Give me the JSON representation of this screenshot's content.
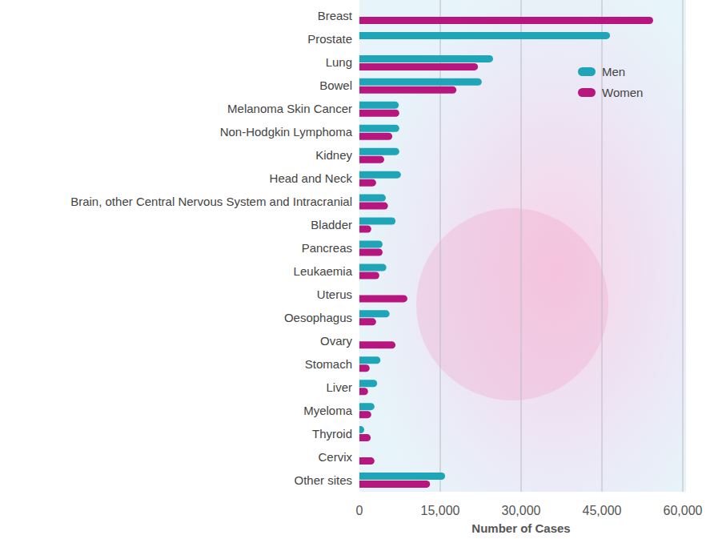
{
  "chart_data": {
    "type": "bar",
    "orientation": "horizontal",
    "x_label": "Number of Cases",
    "categories": [
      "Breast",
      "Prostate",
      "Lung",
      "Bowel",
      "Melanoma Skin Cancer",
      "Non-Hodgkin Lymphoma",
      "Kidney",
      "Head and Neck",
      "Brain, other Central Nervous System and Intracranial",
      "Bladder",
      "Pancreas",
      "Leukaemia",
      "Uterus",
      "Oesophagus",
      "Ovary",
      "Stomach",
      "Liver",
      "Myeloma",
      "Thyroid",
      "Cervix",
      "Other sites"
    ],
    "series": [
      {
        "name": "Men",
        "color": "#1ea5b8",
        "values": [
          null,
          46500,
          24800,
          22700,
          7300,
          7400,
          7400,
          7700,
          4900,
          6700,
          4300,
          5000,
          null,
          5600,
          null,
          3900,
          3300,
          2800,
          900,
          null,
          15900
        ]
      },
      {
        "name": "Women",
        "color": "#b8167f",
        "values": [
          54500,
          null,
          22000,
          18000,
          7400,
          6100,
          4600,
          3100,
          5300,
          2200,
          4300,
          3700,
          8900,
          3100,
          6700,
          1900,
          1600,
          2200,
          2100,
          2800,
          13100
        ]
      }
    ],
    "xlim": [
      0,
      60000
    ],
    "xticks": [
      0,
      {
        "value": 15000,
        "label": "15,000"
      },
      {
        "value": 30000,
        "label": "30,000"
      },
      {
        "value": 45000,
        "label": "45,000"
      },
      {
        "value": 60000,
        "label": "60,000"
      }
    ],
    "grid": true,
    "legend": "upper right"
  }
}
